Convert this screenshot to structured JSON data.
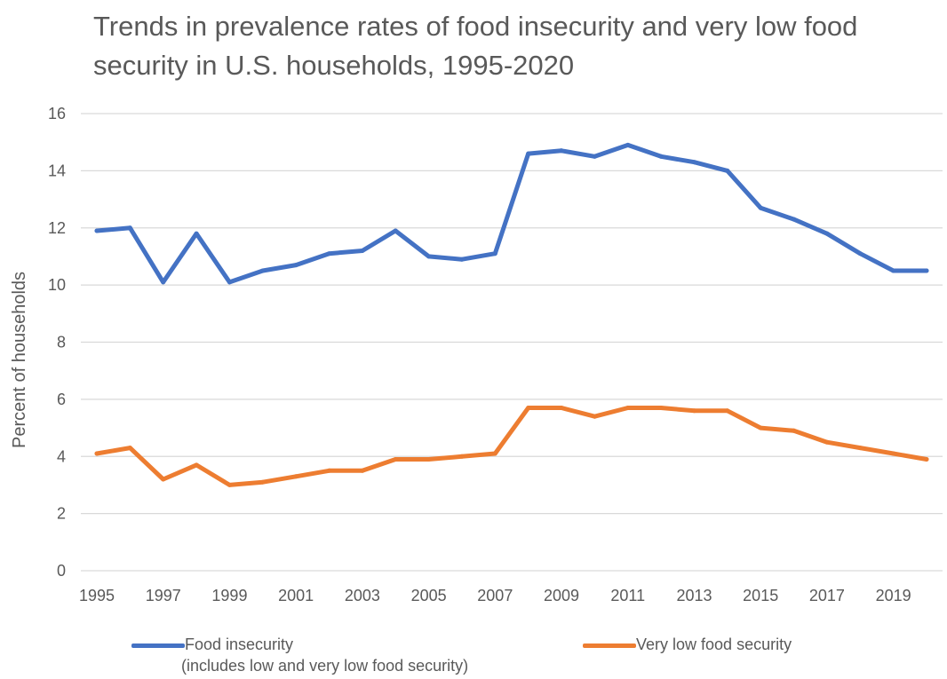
{
  "chart_data": {
    "type": "line",
    "title": "Trends in prevalence rates of food insecurity and very low food security in U.S. households, 1995-2020",
    "ylabel": "Percent of households",
    "xlabel": "",
    "ylim": [
      0,
      16
    ],
    "xlim": [
      1995,
      2020
    ],
    "yticks": [
      "0",
      "2",
      "4",
      "6",
      "8",
      "10",
      "12",
      "14",
      "16"
    ],
    "xticks": [
      "1995",
      "1997",
      "1999",
      "2001",
      "2003",
      "2005",
      "2007",
      "2009",
      "2011",
      "2013",
      "2015",
      "2017",
      "2019"
    ],
    "grid": "horizontal",
    "legend_position": "bottom",
    "x": [
      1995,
      1996,
      1997,
      1998,
      1999,
      2000,
      2001,
      2002,
      2003,
      2004,
      2005,
      2006,
      2007,
      2008,
      2009,
      2010,
      2011,
      2012,
      2013,
      2014,
      2015,
      2016,
      2017,
      2018,
      2019,
      2020
    ],
    "series": [
      {
        "name": "Food insecurity",
        "legend_label_line1": "Food insecurity",
        "legend_label_line2": "(includes low and very low food security)",
        "color": "#4472C4",
        "values": [
          11.9,
          12.0,
          10.1,
          11.8,
          10.1,
          10.5,
          10.7,
          11.1,
          11.2,
          11.9,
          11.0,
          10.9,
          11.1,
          14.6,
          14.7,
          14.5,
          14.9,
          14.5,
          14.3,
          14.0,
          12.7,
          12.3,
          11.8,
          11.1,
          10.5,
          10.5
        ]
      },
      {
        "name": "Very low food security",
        "legend_label_line1": "Very low food security",
        "color": "#ED7D31",
        "values": [
          4.1,
          4.3,
          3.2,
          3.7,
          3.0,
          3.1,
          3.3,
          3.5,
          3.5,
          3.9,
          3.9,
          4.0,
          4.1,
          5.7,
          5.7,
          5.4,
          5.7,
          5.7,
          5.6,
          5.6,
          5.0,
          4.9,
          4.5,
          4.3,
          4.1,
          3.9
        ]
      }
    ]
  }
}
